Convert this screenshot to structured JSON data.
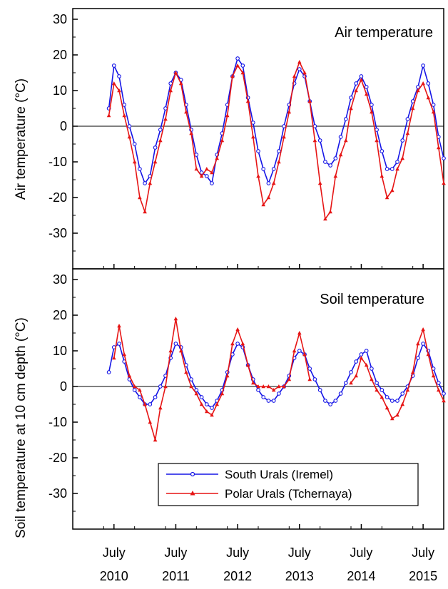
{
  "chart_data": {
    "type": "line",
    "x_tick_labels": [
      {
        "month": "July",
        "year": "2010",
        "date": "2010-07"
      },
      {
        "month": "July",
        "year": "2011",
        "date": "2011-07"
      },
      {
        "month": "July",
        "year": "2012",
        "date": "2012-07"
      },
      {
        "month": "July",
        "year": "2013",
        "date": "2013-07"
      },
      {
        "month": "July",
        "year": "2014",
        "date": "2014-07"
      },
      {
        "month": "July",
        "year": "2015",
        "date": "2015-07"
      }
    ],
    "x_range": [
      "2009-11",
      "2015-11"
    ],
    "legend": {
      "placement": "bottom-center",
      "panel": "soil",
      "entries": [
        {
          "series_key": "south",
          "label": "South Urals (Iremel)"
        },
        {
          "series_key": "polar",
          "label": "Polar Urals (Tchernaya)"
        }
      ]
    },
    "colors": {
      "south": "#1515e6",
      "polar": "#e61515",
      "axis": "#000000"
    },
    "panels": [
      {
        "key": "air",
        "title": "Air temperature",
        "ylabel": "Air temperature (°C)",
        "ylim": [
          -40,
          33
        ],
        "yticks": [
          -30,
          -20,
          -10,
          0,
          10,
          20,
          30
        ],
        "zero_line": true,
        "series": [
          {
            "name": "South Urals (Iremel)",
            "key": "south",
            "x": [
              "2010-06",
              "2010-07",
              "2010-08",
              "2010-09",
              "2010-10",
              "2010-11",
              "2010-12",
              "2011-01",
              "2011-02",
              "2011-03",
              "2011-04",
              "2011-05",
              "2011-06",
              "2011-07",
              "2011-08",
              "2011-09",
              "2011-10",
              "2011-11",
              "2011-12",
              "2012-01",
              "2012-02",
              "2012-03",
              "2012-04",
              "2012-05",
              "2012-06",
              "2012-07",
              "2012-08",
              "2012-09",
              "2012-10",
              "2012-11",
              "2012-12",
              "2013-01",
              "2013-02",
              "2013-03",
              "2013-04",
              "2013-05",
              "2013-06",
              "2013-07",
              "2013-08",
              "2013-09",
              "2013-10",
              "2013-11",
              "2013-12",
              "2014-01",
              "2014-02",
              "2014-03",
              "2014-04",
              "2014-05",
              "2014-06",
              "2014-07",
              "2014-08",
              "2014-09",
              "2014-10",
              "2014-11",
              "2014-12",
              "2015-01",
              "2015-02",
              "2015-03",
              "2015-04",
              "2015-05",
              "2015-06",
              "2015-07",
              "2015-08",
              "2015-09",
              "2015-10",
              "2015-11"
            ],
            "y": [
              5,
              17,
              14,
              6,
              0,
              -5,
              -12,
              -16,
              -14,
              -6,
              -1,
              5,
              12,
              15,
              13,
              6,
              -1,
              -8,
              -13,
              -14,
              -16,
              -8,
              -2,
              6,
              14,
              19,
              17,
              8,
              1,
              -7,
              -12,
              -16,
              -12,
              -7,
              0,
              6,
              12,
              16,
              14,
              7,
              0,
              -4,
              -10,
              -11,
              -9,
              -3,
              2,
              8,
              12,
              14,
              11,
              6,
              -1,
              -7,
              -12,
              -12,
              -10,
              -4,
              2,
              7,
              11,
              17,
              12,
              6,
              -3,
              -9
            ]
          },
          {
            "name": "Polar Urals (Tchernaya)",
            "key": "polar",
            "x": [
              "2010-06",
              "2010-07",
              "2010-08",
              "2010-09",
              "2010-10",
              "2010-11",
              "2010-12",
              "2011-01",
              "2011-02",
              "2011-03",
              "2011-04",
              "2011-05",
              "2011-06",
              "2011-07",
              "2011-08",
              "2011-09",
              "2011-10",
              "2011-11",
              "2011-12",
              "2012-01",
              "2012-02",
              "2012-03",
              "2012-04",
              "2012-05",
              "2012-06",
              "2012-07",
              "2012-08",
              "2012-09",
              "2012-10",
              "2012-11",
              "2012-12",
              "2013-01",
              "2013-02",
              "2013-03",
              "2013-04",
              "2013-05",
              "2013-06",
              "2013-07",
              "2013-08",
              "2013-09",
              "2013-10",
              "2013-11",
              "2013-12",
              "2014-01",
              "2014-02",
              "2014-03",
              "2014-04",
              "2014-05",
              "2014-06",
              "2014-07",
              "2014-08",
              "2014-09",
              "2014-10",
              "2014-11",
              "2014-12",
              "2015-01",
              "2015-02",
              "2015-03",
              "2015-04",
              "2015-05",
              "2015-06",
              "2015-07",
              "2015-08",
              "2015-09",
              "2015-10",
              "2015-11"
            ],
            "y": [
              3,
              12,
              10,
              3,
              -3,
              -10,
              -20,
              -24,
              -16,
              -10,
              -4,
              2,
              10,
              15,
              12,
              4,
              -2,
              -12,
              -14,
              -12,
              -13,
              -9,
              -4,
              3,
              14,
              17,
              15,
              7,
              -3,
              -14,
              -22,
              -20,
              -16,
              -10,
              -3,
              4,
              14,
              18,
              15,
              7,
              -4,
              -16,
              -26,
              -24,
              -14,
              -8,
              -4,
              5,
              10,
              13,
              9,
              4,
              -4,
              -14,
              -20,
              -18,
              -12,
              -9,
              -2,
              5,
              10,
              12,
              8,
              4,
              -6,
              -16
            ]
          }
        ]
      },
      {
        "key": "soil",
        "title": "Soil temperature",
        "ylabel": "Soil temperature at 10 cm depth (°C)",
        "ylim": [
          -40,
          33
        ],
        "yticks": [
          -30,
          -20,
          -10,
          0,
          10,
          20,
          30
        ],
        "zero_line": true,
        "series": [
          {
            "name": "South Urals (Iremel)",
            "key": "south",
            "x": [
              "2010-06",
              "2010-07",
              "2010-08",
              "2010-09",
              "2010-10",
              "2010-11",
              "2010-12",
              "2011-01",
              "2011-02",
              "2011-03",
              "2011-04",
              "2011-05",
              "2011-06",
              "2011-07",
              "2011-08",
              "2011-09",
              "2011-10",
              "2011-11",
              "2011-12",
              "2012-01",
              "2012-02",
              "2012-03",
              "2012-04",
              "2012-05",
              "2012-06",
              "2012-07",
              "2012-08",
              "2012-09",
              "2012-10",
              "2012-11",
              "2012-12",
              "2013-01",
              "2013-02",
              "2013-03",
              "2013-04",
              "2013-05",
              "2013-06",
              "2013-07",
              "2013-08",
              "2013-09",
              "2013-10",
              "2013-11",
              "2013-12",
              "2014-01",
              "2014-02",
              "2014-03",
              "2014-04",
              "2014-05",
              "2014-06",
              "2014-07",
              "2014-08",
              "2014-09",
              "2014-10",
              "2014-11",
              "2014-12",
              "2015-01",
              "2015-02",
              "2015-03",
              "2015-04",
              "2015-05",
              "2015-06",
              "2015-07",
              "2015-08",
              "2015-09",
              "2015-10",
              "2015-11"
            ],
            "y": [
              4,
              11,
              12,
              7,
              2,
              -1,
              -3,
              -5,
              -5,
              -3,
              0,
              3,
              8,
              12,
              11,
              6,
              2,
              -1,
              -3,
              -5,
              -6,
              -4,
              -1,
              4,
              9,
              12,
              11,
              6,
              2,
              -1,
              -3,
              -4,
              -4,
              -2,
              0,
              3,
              8,
              10,
              9,
              5,
              2,
              -1,
              -4,
              -5,
              -4,
              -2,
              1,
              4,
              7,
              9,
              10,
              5,
              1,
              -1,
              -3,
              -4,
              -4,
              -2,
              0,
              3,
              8,
              12,
              10,
              5,
              1,
              -2
            ]
          },
          {
            "name": "Polar Urals (Tchernaya)",
            "key": "polar",
            "x": [
              "2010-07",
              "2010-08",
              "2010-09",
              "2010-10",
              "2010-11",
              "2010-12",
              "2011-01",
              "2011-02",
              "2011-03",
              "2011-04",
              "2011-05",
              "2011-06",
              "2011-07",
              "2011-08",
              "2011-09",
              "2011-10",
              "2011-11",
              "2011-12",
              "2012-01",
              "2012-02",
              "2012-03",
              "2012-04",
              "2012-05",
              "2012-06",
              "2012-07",
              "2012-08",
              "2012-09",
              "2012-10",
              "2012-11",
              "2012-12",
              "2013-01",
              "2013-02",
              "2013-03",
              "2013-04",
              "2013-05",
              "2013-06",
              "2013-07",
              "2013-08",
              "2013-09",
              "2014-05",
              "2014-06",
              "2014-07",
              "2014-08",
              "2014-09",
              "2014-10",
              "2014-11",
              "2014-12",
              "2015-01",
              "2015-02",
              "2015-03",
              "2015-04",
              "2015-05",
              "2015-06",
              "2015-07",
              "2015-08",
              "2015-09",
              "2015-10",
              "2015-11"
            ],
            "y": [
              8,
              17,
              9,
              3,
              0,
              -1,
              -5,
              -10,
              -15,
              -6,
              0,
              10,
              19,
              10,
              4,
              0,
              -2,
              -5,
              -7,
              -8,
              -5,
              -2,
              3,
              12,
              16,
              12,
              6,
              1,
              0,
              0,
              0,
              -1,
              0,
              0,
              2,
              10,
              15,
              9,
              2,
              1,
              3,
              8,
              6,
              2,
              -1,
              -3,
              -6,
              -9,
              -8,
              -5,
              -1,
              4,
              12,
              16,
              9,
              3,
              -1,
              -4
            ]
          }
        ]
      }
    ]
  }
}
